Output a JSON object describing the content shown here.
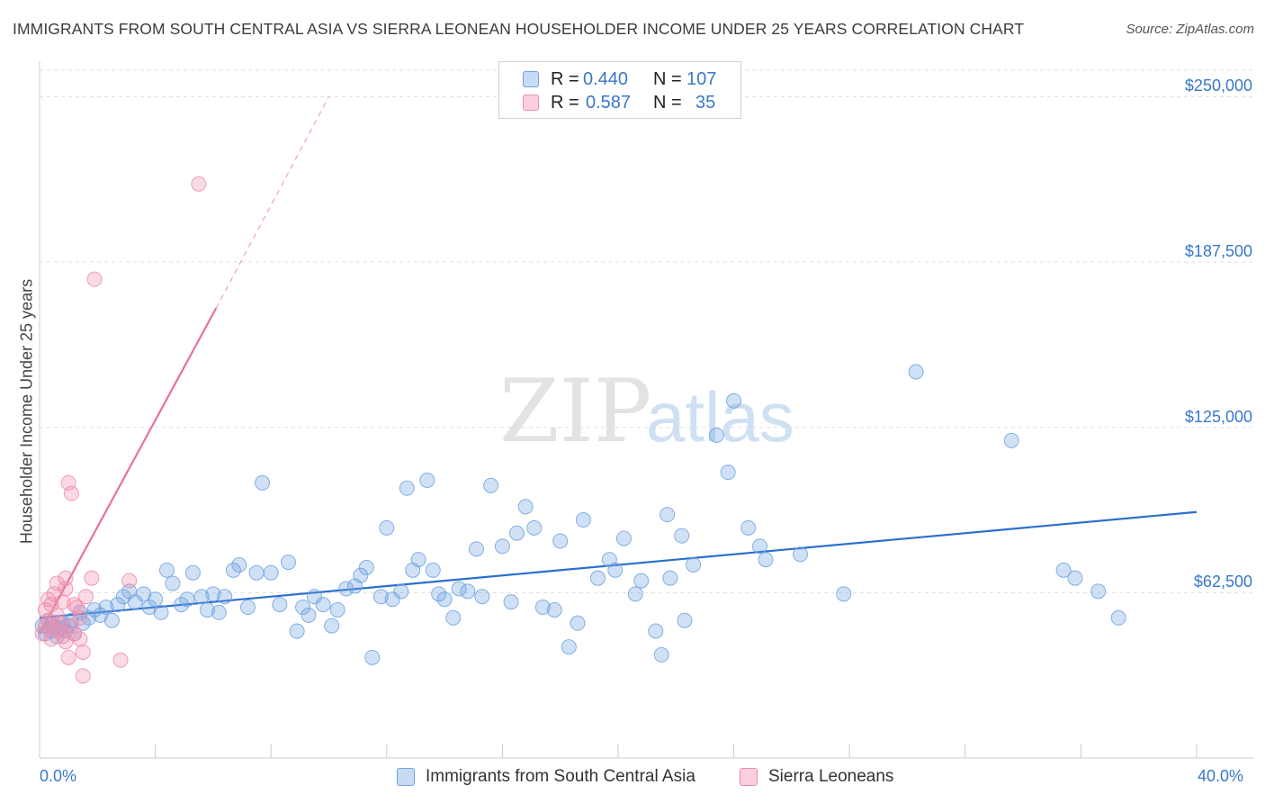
{
  "chart_data": {
    "type": "scatter",
    "title": "IMMIGRANTS FROM SOUTH CENTRAL ASIA VS SIERRA LEONEAN HOUSEHOLDER INCOME UNDER 25 YEARS CORRELATION CHART",
    "source": "Source: ZipAtlas.com",
    "xlabel": "",
    "ylabel": "Householder Income Under 25 years",
    "xlim": [
      0,
      40
    ],
    "ylim": [
      0,
      260000
    ],
    "x_tick_labels": [
      "0.0%",
      "40.0%"
    ],
    "y_ticks": [
      62500,
      125000,
      187500,
      250000
    ],
    "y_tick_labels": [
      "$62,500",
      "$125,000",
      "$187,500",
      "$250,000"
    ],
    "legend": [
      {
        "name": "Immigrants from South Central Asia",
        "color": "#6fa3e0",
        "R": "0.440",
        "N": "107"
      },
      {
        "name": "Sierra Leoneans",
        "color": "#f08bab",
        "R": "0.587",
        "N": "35"
      }
    ],
    "series": [
      {
        "name": "Immigrants from South Central Asia",
        "color": "#6fa3e0",
        "trend": {
          "x": [
            0,
            40
          ],
          "y": [
            53000,
            93000
          ]
        },
        "points": [
          [
            0.1,
            50000
          ],
          [
            0.2,
            47000
          ],
          [
            0.3,
            52000
          ],
          [
            0.4,
            48000
          ],
          [
            0.5,
            50000
          ],
          [
            0.6,
            46000
          ],
          [
            0.7,
            49000
          ],
          [
            0.8,
            51000
          ],
          [
            0.9,
            48000
          ],
          [
            1.0,
            50000
          ],
          [
            1.1,
            52000
          ],
          [
            1.2,
            47000
          ],
          [
            1.4,
            55000
          ],
          [
            1.5,
            51000
          ],
          [
            1.7,
            53000
          ],
          [
            1.9,
            56000
          ],
          [
            2.1,
            54000
          ],
          [
            2.3,
            57000
          ],
          [
            2.5,
            52000
          ],
          [
            2.7,
            58000
          ],
          [
            2.9,
            61000
          ],
          [
            3.1,
            63000
          ],
          [
            3.3,
            59000
          ],
          [
            3.6,
            62000
          ],
          [
            3.8,
            57000
          ],
          [
            4.0,
            60000
          ],
          [
            4.2,
            55000
          ],
          [
            4.4,
            71000
          ],
          [
            4.6,
            66000
          ],
          [
            4.9,
            58000
          ],
          [
            5.1,
            60000
          ],
          [
            5.3,
            70000
          ],
          [
            5.6,
            61000
          ],
          [
            5.8,
            56000
          ],
          [
            6.0,
            62000
          ],
          [
            6.2,
            55000
          ],
          [
            6.4,
            61000
          ],
          [
            6.7,
            71000
          ],
          [
            6.9,
            73000
          ],
          [
            7.2,
            57000
          ],
          [
            7.5,
            70000
          ],
          [
            7.7,
            104000
          ],
          [
            8.0,
            70000
          ],
          [
            8.3,
            58000
          ],
          [
            8.6,
            74000
          ],
          [
            8.9,
            48000
          ],
          [
            9.1,
            57000
          ],
          [
            9.3,
            54000
          ],
          [
            9.5,
            61000
          ],
          [
            9.8,
            58000
          ],
          [
            10.1,
            50000
          ],
          [
            10.3,
            56000
          ],
          [
            10.6,
            64000
          ],
          [
            10.9,
            65000
          ],
          [
            11.1,
            69000
          ],
          [
            11.3,
            72000
          ],
          [
            11.5,
            38000
          ],
          [
            11.8,
            61000
          ],
          [
            12.0,
            87000
          ],
          [
            12.2,
            60000
          ],
          [
            12.5,
            63000
          ],
          [
            12.7,
            102000
          ],
          [
            12.9,
            71000
          ],
          [
            13.1,
            75000
          ],
          [
            13.4,
            105000
          ],
          [
            13.6,
            71000
          ],
          [
            13.8,
            62000
          ],
          [
            14.0,
            60000
          ],
          [
            14.3,
            53000
          ],
          [
            14.5,
            64000
          ],
          [
            14.8,
            63000
          ],
          [
            15.1,
            79000
          ],
          [
            15.3,
            61000
          ],
          [
            15.6,
            103000
          ],
          [
            16.0,
            80000
          ],
          [
            16.3,
            59000
          ],
          [
            16.5,
            85000
          ],
          [
            16.8,
            95000
          ],
          [
            17.1,
            87000
          ],
          [
            17.4,
            57000
          ],
          [
            17.8,
            56000
          ],
          [
            18.0,
            82000
          ],
          [
            18.3,
            42000
          ],
          [
            18.6,
            51000
          ],
          [
            18.8,
            90000
          ],
          [
            19.3,
            68000
          ],
          [
            19.7,
            75000
          ],
          [
            19.9,
            71000
          ],
          [
            20.2,
            83000
          ],
          [
            20.6,
            62000
          ],
          [
            20.8,
            67000
          ],
          [
            21.3,
            48000
          ],
          [
            21.5,
            39000
          ],
          [
            21.7,
            92000
          ],
          [
            21.8,
            68000
          ],
          [
            22.2,
            84000
          ],
          [
            22.3,
            52000
          ],
          [
            22.6,
            73000
          ],
          [
            23.4,
            122000
          ],
          [
            23.8,
            108000
          ],
          [
            24.0,
            135000
          ],
          [
            24.5,
            87000
          ],
          [
            24.9,
            80000
          ],
          [
            25.1,
            75000
          ],
          [
            26.3,
            77000
          ],
          [
            27.8,
            62000
          ],
          [
            30.3,
            146000
          ],
          [
            33.6,
            120000
          ],
          [
            35.4,
            71000
          ],
          [
            35.8,
            68000
          ],
          [
            36.6,
            63000
          ],
          [
            37.3,
            53000
          ]
        ]
      },
      {
        "name": "Sierra Leoneans",
        "color": "#f08bab",
        "trend": {
          "x": [
            0,
            6.1
          ],
          "y": [
            47000,
            170000
          ]
        },
        "trend_dashed": {
          "x": [
            6.1,
            10.0
          ],
          "y": [
            170000,
            250000
          ]
        },
        "points": [
          [
            0.1,
            47000
          ],
          [
            0.2,
            56000
          ],
          [
            0.2,
            50000
          ],
          [
            0.3,
            60000
          ],
          [
            0.3,
            52000
          ],
          [
            0.4,
            58000
          ],
          [
            0.4,
            45000
          ],
          [
            0.5,
            62000
          ],
          [
            0.5,
            49000
          ],
          [
            0.6,
            66000
          ],
          [
            0.6,
            54000
          ],
          [
            0.7,
            51000
          ],
          [
            0.7,
            48000
          ],
          [
            0.8,
            59000
          ],
          [
            0.8,
            46000
          ],
          [
            0.9,
            44000
          ],
          [
            0.9,
            64000
          ],
          [
            0.9,
            68000
          ],
          [
            1.0,
            104000
          ],
          [
            1.0,
            38000
          ],
          [
            1.1,
            100000
          ],
          [
            1.1,
            50000
          ],
          [
            1.2,
            58000
          ],
          [
            1.2,
            47000
          ],
          [
            1.3,
            57000
          ],
          [
            1.4,
            53000
          ],
          [
            1.4,
            45000
          ],
          [
            1.5,
            40000
          ],
          [
            1.5,
            31000
          ],
          [
            1.6,
            61000
          ],
          [
            1.8,
            68000
          ],
          [
            1.9,
            181000
          ],
          [
            2.8,
            37000
          ],
          [
            3.1,
            67000
          ],
          [
            5.5,
            217000
          ]
        ]
      }
    ]
  }
}
